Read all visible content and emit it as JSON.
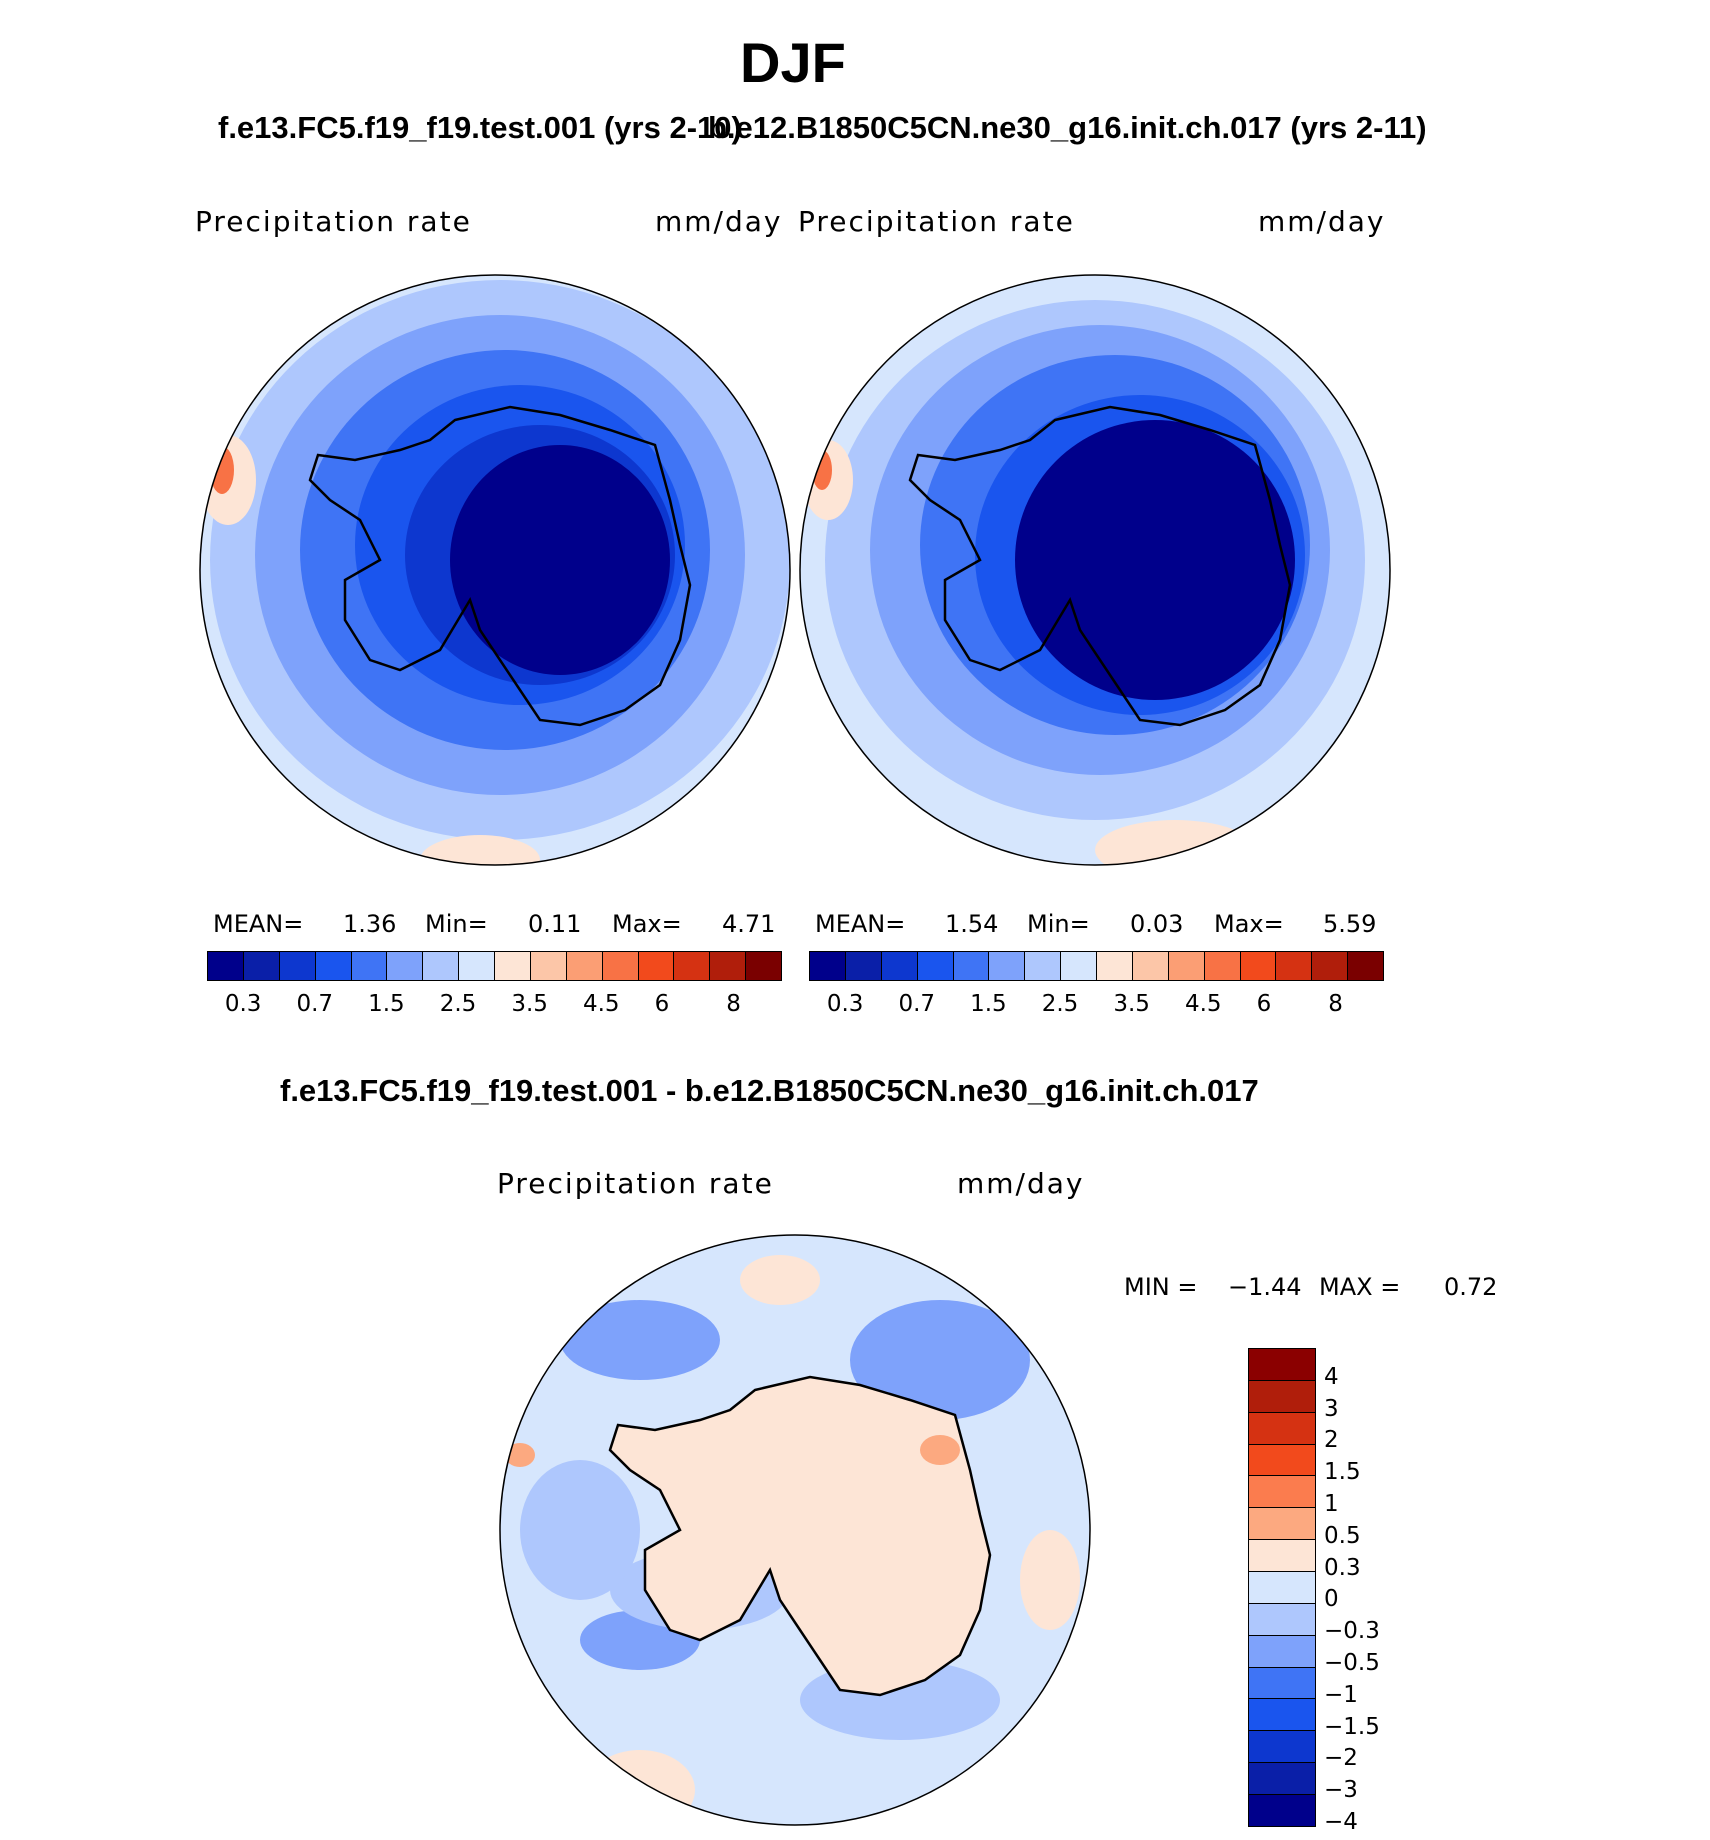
{
  "title": "DJF",
  "panel1": {
    "case_title": "f.e13.FC5.f19_f19.test.001 (yrs 2-10)",
    "variable": "Precipitation rate",
    "units": "mm/day",
    "mean_label": "MEAN=",
    "mean_value": "1.36",
    "min_label": "Min=",
    "min_value": "0.11",
    "max_label": "Max=",
    "max_value": "4.71"
  },
  "panel2": {
    "case_title": "b.e12.B1850C5CN.ne30_g16.init.ch.017 (yrs 2-11)",
    "variable": "Precipitation rate",
    "units": "mm/day",
    "mean_label": "MEAN=",
    "mean_value": "1.54",
    "min_label": "Min=",
    "min_value": "0.03",
    "max_label": "Max=",
    "max_value": "5.59"
  },
  "abs_colorbar": {
    "ticks": [
      "0.3",
      "0.7",
      "1.5",
      "2.5",
      "3.5",
      "4.5",
      "6",
      "8"
    ],
    "colors": [
      "#00008b",
      "#0a1fa8",
      "#0d37cf",
      "#1a55ee",
      "#3f74f5",
      "#7ea2fb",
      "#aec7fd",
      "#d6e6fd",
      "#fde5d6",
      "#fcc6a8",
      "#fb9e74",
      "#f87245",
      "#f24a1c",
      "#d53212",
      "#b01e0b",
      "#7a0000"
    ]
  },
  "panel3": {
    "case_title": "f.e13.FC5.f19_f19.test.001 - b.e12.B1850C5CN.ne30_g16.init.ch.017",
    "variable": "Precipitation rate",
    "units": "mm/day",
    "min_label": "MIN =",
    "min_value": "−1.44",
    "max_label": "MAX =",
    "max_value": "0.72"
  },
  "diff_colorbar": {
    "ticks": [
      "4",
      "3",
      "2",
      "1.5",
      "1",
      "0.5",
      "0.3",
      "0",
      "−0.3",
      "−0.5",
      "−1",
      "−1.5",
      "−2",
      "−3",
      "−4"
    ],
    "colors": [
      "#8b0000",
      "#b01e0b",
      "#d53212",
      "#f24a1c",
      "#fb7c4e",
      "#fca980",
      "#fde5d6",
      "#d6e6fd",
      "#aec7fd",
      "#7ea2fb",
      "#3f74f5",
      "#1a55ee",
      "#0d37cf",
      "#0a1fa8",
      "#00008b"
    ]
  }
}
